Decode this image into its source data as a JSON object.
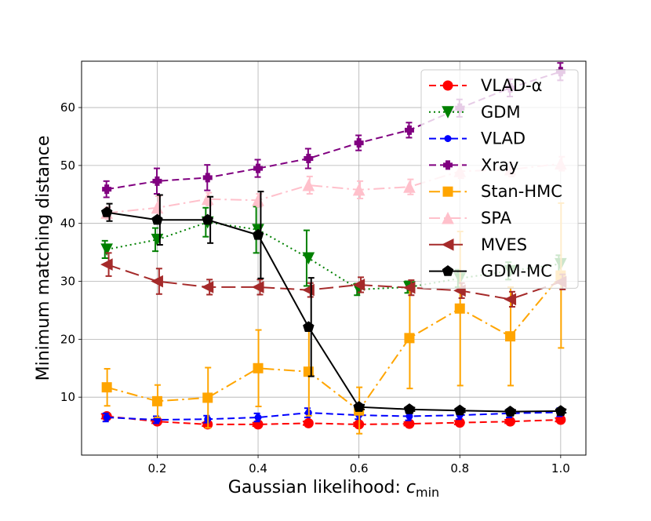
{
  "chart_data": {
    "type": "line",
    "xlabel": "Gaussian likelihood: ",
    "xlabel_var": "c",
    "xlabel_sub": "min",
    "ylabel": "Minimum matching distance",
    "xlim": [
      0.05,
      1.05
    ],
    "ylim": [
      0,
      68
    ],
    "x_ticks": [
      0.2,
      0.4,
      0.6,
      0.8,
      1.0
    ],
    "x_tick_labels": [
      "0.2",
      "0.4",
      "0.6",
      "0.8",
      "1.0"
    ],
    "y_ticks": [
      10,
      20,
      30,
      40,
      50,
      60
    ],
    "y_tick_labels": [
      "10",
      "20",
      "30",
      "40",
      "50",
      "60"
    ],
    "grid": true,
    "legend_position": "top-right",
    "series": [
      {
        "name": "VLAD-α",
        "color": "#ff0000",
        "marker": "circle",
        "dash": "dashed",
        "x": [
          0.1,
          0.2,
          0.3,
          0.4,
          0.5,
          0.6,
          0.7,
          0.8,
          0.9,
          1.0
        ],
        "y": [
          6.7,
          5.8,
          5.3,
          5.3,
          5.5,
          5.3,
          5.4,
          5.6,
          5.8,
          6.1
        ],
        "err": [
          0.4,
          0.3,
          0.3,
          0.3,
          0.3,
          0.3,
          0.3,
          0.3,
          0.3,
          0.3
        ]
      },
      {
        "name": "GDM",
        "color": "#008000",
        "marker": "triangle-down",
        "dash": "dotted",
        "x": [
          0.1,
          0.2,
          0.3,
          0.4,
          0.5,
          0.6,
          0.7,
          0.8,
          0.9,
          1.0
        ],
        "y": [
          35.5,
          37.2,
          40.2,
          38.9,
          34.0,
          28.6,
          29.0,
          30.5,
          31.8,
          33.0
        ],
        "err": [
          1.5,
          2.0,
          2.5,
          4.0,
          4.8,
          1.0,
          1.0,
          1.5,
          1.5,
          1.5
        ]
      },
      {
        "name": "VLAD",
        "color": "#0000ff",
        "marker": "circle-small",
        "dash": "dashed",
        "x": [
          0.1,
          0.2,
          0.3,
          0.4,
          0.5,
          0.6,
          0.7,
          0.8,
          0.9,
          1.0
        ],
        "y": [
          6.5,
          6.1,
          6.2,
          6.5,
          7.3,
          6.9,
          6.7,
          6.9,
          7.2,
          7.4
        ],
        "err": [
          0.7,
          0.6,
          0.6,
          0.7,
          0.8,
          0.7,
          0.7,
          0.7,
          0.7,
          0.7
        ]
      },
      {
        "name": "Xray",
        "color": "#800080",
        "marker": "plus-filled",
        "dash": "dashed",
        "x": [
          0.1,
          0.2,
          0.3,
          0.4,
          0.5,
          0.6,
          0.7,
          0.8,
          0.9,
          1.0
        ],
        "y": [
          45.9,
          47.3,
          47.9,
          49.5,
          51.2,
          53.9,
          56.1,
          59.9,
          63.4,
          66.2
        ],
        "err": [
          1.4,
          2.2,
          2.2,
          1.5,
          1.7,
          1.3,
          1.3,
          1.5,
          1.5,
          1.5
        ]
      },
      {
        "name": "Stan-HMC",
        "color": "#ffa500",
        "marker": "square",
        "dash": "dashdot",
        "x": [
          0.1,
          0.2,
          0.3,
          0.4,
          0.5,
          0.6,
          0.7,
          0.8,
          0.9,
          1.0
        ],
        "y": [
          11.7,
          9.3,
          9.9,
          15.0,
          14.4,
          7.7,
          20.2,
          25.3,
          20.5,
          31.0
        ],
        "err": [
          3.2,
          2.8,
          5.2,
          6.6,
          7.6,
          4.0,
          8.7,
          13.3,
          8.5,
          12.5
        ]
      },
      {
        "name": "SPA",
        "color": "#ffc0cb",
        "marker": "triangle-up",
        "dash": "dashdot",
        "x": [
          0.1,
          0.2,
          0.3,
          0.4,
          0.5,
          0.6,
          0.7,
          0.8,
          0.9,
          1.0
        ],
        "y": [
          41.8,
          42.7,
          44.2,
          44.0,
          46.6,
          45.8,
          46.3,
          49.0,
          49.3,
          50.3
        ],
        "err": [
          1.0,
          2.0,
          1.1,
          1.1,
          1.5,
          1.5,
          1.3,
          1.2,
          1.2,
          1.2
        ]
      },
      {
        "name": "MVES",
        "color": "#a52a2a",
        "marker": "triangle-left",
        "dash": "longdash",
        "x": [
          0.1,
          0.2,
          0.3,
          0.4,
          0.5,
          0.6,
          0.7,
          0.8,
          0.9,
          1.0
        ],
        "y": [
          32.9,
          30.0,
          29.0,
          29.0,
          28.5,
          29.4,
          28.9,
          28.4,
          26.9,
          29.9
        ],
        "err": [
          2.0,
          2.2,
          1.3,
          1.3,
          1.2,
          1.3,
          1.3,
          1.3,
          1.3,
          1.3
        ]
      },
      {
        "name": "GDM-MC",
        "color": "#000000",
        "marker": "pentagon",
        "dash": "solid",
        "x": [
          0.1,
          0.2,
          0.3,
          0.4,
          0.5,
          0.6,
          0.7,
          0.8,
          0.9,
          1.0
        ],
        "y": [
          41.9,
          40.6,
          40.6,
          38.0,
          22.1,
          8.3,
          7.9,
          7.7,
          7.5,
          7.6
        ],
        "err": [
          1.5,
          4.3,
          4.0,
          7.5,
          8.5,
          0.4,
          0.3,
          0.3,
          0.3,
          0.3
        ]
      }
    ]
  }
}
